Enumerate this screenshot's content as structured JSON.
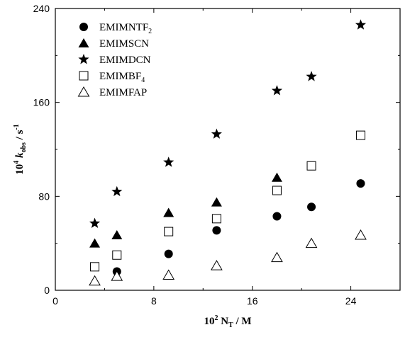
{
  "chart_data": {
    "type": "scatter",
    "title": "",
    "xlim": [
      0,
      28
    ],
    "ylim": [
      0,
      240
    ],
    "xticks": [
      0,
      8,
      16,
      24
    ],
    "yticks": [
      0,
      80,
      160,
      240
    ],
    "xlabel": {
      "prefix": "10",
      "sup": "2",
      "main": " N",
      "sub": "T",
      "suffix": " / M"
    },
    "ylabel": {
      "prefix": "10",
      "sup": "4",
      "main": " k",
      "sub": "obs",
      "suffix": " / s",
      "sup2": "-1"
    },
    "legend_position": "top-left",
    "series": [
      {
        "name": "EMIMNTF2",
        "label_main": "EMIMNTF",
        "label_sub": "2",
        "marker": "filled-circle",
        "x": [
          5.0,
          9.2,
          13.1,
          18.0,
          20.8,
          24.8
        ],
        "y": [
          16,
          31,
          51,
          63,
          71,
          91
        ]
      },
      {
        "name": "EMIMSCN",
        "label_main": "EMIMSCN",
        "label_sub": "",
        "marker": "filled-triangle",
        "x": [
          3.2,
          5.0,
          9.2,
          13.1,
          18.0
        ],
        "y": [
          40,
          47,
          66,
          75,
          96
        ]
      },
      {
        "name": "EMIMDCN",
        "label_main": "EMIMDCN",
        "label_sub": "",
        "marker": "filled-star",
        "x": [
          3.2,
          5.0,
          9.2,
          13.1,
          18.0,
          20.8,
          24.8
        ],
        "y": [
          57,
          84,
          109,
          133,
          170,
          182,
          226
        ]
      },
      {
        "name": "EMIMBF4",
        "label_main": "EMIMBF",
        "label_sub": "4",
        "marker": "open-square",
        "x": [
          3.2,
          5.0,
          9.2,
          13.1,
          18.0,
          20.8,
          24.8
        ],
        "y": [
          20,
          30,
          50,
          61,
          85,
          106,
          132
        ]
      },
      {
        "name": "EMIMFAP",
        "label_main": "EMIMFAP",
        "label_sub": "",
        "marker": "open-triangle",
        "x": [
          3.2,
          5.0,
          9.2,
          13.1,
          18.0,
          20.8,
          24.8
        ],
        "y": [
          8,
          12,
          13,
          21,
          28,
          40,
          47
        ]
      }
    ]
  }
}
